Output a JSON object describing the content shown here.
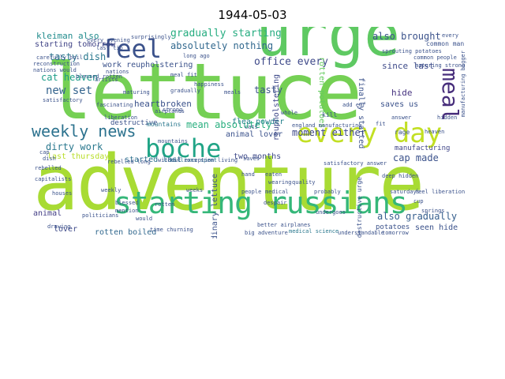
{
  "title": "1944-05-03",
  "palette": {
    "dark_purple": "#440154",
    "dark_blue": "#3b528b",
    "teal": "#21918c",
    "green": "#5ec962",
    "lime": "#b5de2b",
    "yellow": "#fde725"
  },
  "words": {
    "adventure": "adventure",
    "lettuce": "lettuce",
    "urge": "urge",
    "starting_russians": "starting russians",
    "every_day": "every day",
    "boche": "boche",
    "feel": "feel",
    "meal": "meal",
    "weekly_news": "weekly news",
    "gradually_starting": "gradually starting",
    "kleiman_also": "kleiman also",
    "starting_tomorrow": "starting tomorrow",
    "tasty_dish": "tasty dish",
    "absolutely_nothing": "absolutely nothing",
    "office_every": "office every",
    "also_brought": "also brought",
    "since_last": "since last",
    "cat_heaven": "cat heaven",
    "work_reupholstering": "work reupholstering",
    "new_set": "new set",
    "heartbroken": "heartbroken",
    "mean_absolutely": "mean absolutely",
    "dirty_work": "dirty work",
    "last_thursday": "last thursday",
    "started_last": "started last",
    "flea_powder": "flea powder",
    "animal_lover": "animal lover",
    "two_months": "two months",
    "moment_either": "moment either",
    "cap_made": "cap made",
    "manufacturing": "manufacturing",
    "hide": "hide",
    "saves_us": "saves us",
    "tasty": "tasty",
    "also_gradually": "also gradually",
    "potatoes": "potatoes",
    "seen_hide": "seen hide",
    "rotten_boiled": "rotten boiled",
    "lover": "lover",
    "animal": "animal",
    "destructive": "destructive",
    "mountains": "mountains",
    "ordinary_lettuce": "ordinary lettuce",
    "reupholstering": "reupholstering",
    "finally_started": "finally started",
    "rotten_potatoes": "rotten potatoes",
    "time_churning": "time churning",
    "millions_spent": "millions spent",
    "better_airplanes": "better airplanes",
    "medical_science": "medical science",
    "rebelled_long": "rebelled long",
    "meal_fit": "meal fit",
    "artists": "artists",
    "nations": "nations",
    "satisfactory": "satisfactory",
    "rebelled": "rebelled",
    "reconstruction": "reconstruction",
    "nations_would": "nations would",
    "england_manufacturing": "england manufacturing",
    "satisfactory_answer": "satisfactory answer",
    "saves": "saves",
    "manufacturing_bigger": "manufacturing bigger",
    "rage": "rage",
    "kill": "kill",
    "heaven": "heaven",
    "common_man": "common man",
    "politicians": "politicians",
    "capitalists": "capitalists",
    "destructive_urge": "destructive urge",
    "weekly": "weekly",
    "airplanes": "airplanes",
    "hand": "hand",
    "people": "people",
    "medical": "medical",
    "liberation": "liberation",
    "feel_liberation": "feel liberation",
    "saturdays": "saturdays",
    "houses": "houses",
    "cap": "cap",
    "dish": "dish",
    "blessed": "blessed",
    "cats": "cats",
    "gradually": "gradually",
    "strong": "strong",
    "mention": "mention",
    "would": "would",
    "sprouting_potatoes": "sprouting potatoes",
    "long_ago": "long ago",
    "every_evening": "every evening",
    "surprisingly": "surprisingly",
    "carefully_boil": "carefully boil",
    "last_tip": "last tip",
    "every": "every",
    "answer": "answer",
    "maturing": "maturing",
    "meals": "meals",
    "happiness": "happiness",
    "maturing_strong": "maturing strong",
    "add_ear": "add ear",
    "fascinating": "fascinating",
    "drawing": "drawing",
    "blessed_rotten": "blessed rotten",
    "despair": "despair",
    "wearing": "wearing",
    "quality": "quality",
    "fit": "fit",
    "eaten": "eaten",
    "weeks": "weeks",
    "cup": "cup",
    "rotten": "rotten",
    "whole": "whole",
    "big_adventure": "big adventure",
    "undergoes": "undergoes",
    "deep_hidden": "deep hidden",
    "without_exception_living": "without exception living",
    "probably": "probably",
    "springs": "springs",
    "tomorrow": "tomorrow",
    "understandable": "understandable",
    "common_people": "common people",
    "hidden": "hidden",
    "mountains_small": "mountains"
  }
}
